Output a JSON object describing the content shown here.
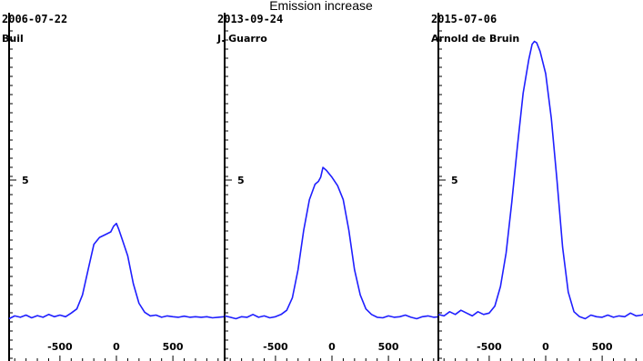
{
  "chart_data": {
    "type": "line",
    "title": "Emission increase",
    "xlim": [
      -950,
      950
    ],
    "ylim": [
      -0.5,
      10.2
    ],
    "y_tick_labels": [
      {
        "value": 5,
        "label": "5"
      }
    ],
    "x_tick_labels": [
      {
        "value": -500,
        "label": "-500"
      },
      {
        "value": 0,
        "label": "0"
      },
      {
        "value": 500,
        "label": "500"
      }
    ],
    "panels": [
      {
        "date": "2006-07-22",
        "observer": "Buil",
        "series_color": "#1f1fff",
        "points": [
          [
            -950,
            0.05
          ],
          [
            -900,
            0.15
          ],
          [
            -850,
            0.1
          ],
          [
            -800,
            0.18
          ],
          [
            -750,
            0.08
          ],
          [
            -700,
            0.16
          ],
          [
            -650,
            0.1
          ],
          [
            -600,
            0.2
          ],
          [
            -550,
            0.12
          ],
          [
            -500,
            0.18
          ],
          [
            -450,
            0.12
          ],
          [
            -400,
            0.25
          ],
          [
            -350,
            0.4
          ],
          [
            -300,
            0.9
          ],
          [
            -250,
            1.8
          ],
          [
            -200,
            2.7
          ],
          [
            -150,
            2.95
          ],
          [
            -100,
            3.05
          ],
          [
            -50,
            3.15
          ],
          [
            -25,
            3.35
          ],
          [
            0,
            3.45
          ],
          [
            20,
            3.25
          ],
          [
            50,
            2.9
          ],
          [
            100,
            2.3
          ],
          [
            150,
            1.3
          ],
          [
            200,
            0.6
          ],
          [
            250,
            0.28
          ],
          [
            300,
            0.15
          ],
          [
            350,
            0.18
          ],
          [
            400,
            0.1
          ],
          [
            450,
            0.15
          ],
          [
            500,
            0.12
          ],
          [
            550,
            0.1
          ],
          [
            600,
            0.14
          ],
          [
            650,
            0.1
          ],
          [
            700,
            0.12
          ],
          [
            750,
            0.1
          ],
          [
            800,
            0.12
          ],
          [
            850,
            0.08
          ],
          [
            900,
            0.1
          ],
          [
            950,
            0.12
          ]
        ]
      },
      {
        "date": "2013-09-24",
        "observer": "J. Guarro",
        "series_color": "#1f1fff",
        "points": [
          [
            -950,
            0.15
          ],
          [
            -900,
            0.1
          ],
          [
            -850,
            0.05
          ],
          [
            -800,
            0.12
          ],
          [
            -750,
            0.1
          ],
          [
            -700,
            0.2
          ],
          [
            -650,
            0.1
          ],
          [
            -600,
            0.15
          ],
          [
            -550,
            0.08
          ],
          [
            -500,
            0.12
          ],
          [
            -450,
            0.2
          ],
          [
            -400,
            0.35
          ],
          [
            -350,
            0.8
          ],
          [
            -300,
            1.8
          ],
          [
            -250,
            3.2
          ],
          [
            -200,
            4.3
          ],
          [
            -150,
            4.85
          ],
          [
            -120,
            4.95
          ],
          [
            -100,
            5.1
          ],
          [
            -80,
            5.45
          ],
          [
            -50,
            5.35
          ],
          [
            0,
            5.1
          ],
          [
            50,
            4.8
          ],
          [
            100,
            4.3
          ],
          [
            150,
            3.2
          ],
          [
            200,
            1.8
          ],
          [
            250,
            0.9
          ],
          [
            300,
            0.4
          ],
          [
            350,
            0.2
          ],
          [
            400,
            0.1
          ],
          [
            450,
            0.08
          ],
          [
            500,
            0.15
          ],
          [
            550,
            0.1
          ],
          [
            600,
            0.12
          ],
          [
            650,
            0.18
          ],
          [
            700,
            0.1
          ],
          [
            750,
            0.05
          ],
          [
            800,
            0.12
          ],
          [
            850,
            0.15
          ],
          [
            900,
            0.1
          ],
          [
            950,
            0.12
          ]
        ]
      },
      {
        "date": "2015-07-06",
        "observer": "Arnold de Bruin",
        "series_color": "#1f1fff",
        "points": [
          [
            -950,
            0.2
          ],
          [
            -900,
            0.15
          ],
          [
            -850,
            0.3
          ],
          [
            -800,
            0.2
          ],
          [
            -750,
            0.35
          ],
          [
            -700,
            0.25
          ],
          [
            -650,
            0.15
          ],
          [
            -600,
            0.3
          ],
          [
            -550,
            0.2
          ],
          [
            -500,
            0.25
          ],
          [
            -450,
            0.5
          ],
          [
            -400,
            1.2
          ],
          [
            -350,
            2.4
          ],
          [
            -300,
            4.2
          ],
          [
            -250,
            6.2
          ],
          [
            -200,
            8.1
          ],
          [
            -150,
            9.3
          ],
          [
            -120,
            9.85
          ],
          [
            -100,
            9.95
          ],
          [
            -80,
            9.9
          ],
          [
            -50,
            9.6
          ],
          [
            0,
            8.8
          ],
          [
            50,
            7.2
          ],
          [
            100,
            5.0
          ],
          [
            150,
            2.6
          ],
          [
            200,
            1.0
          ],
          [
            250,
            0.3
          ],
          [
            300,
            0.12
          ],
          [
            350,
            0.05
          ],
          [
            400,
            0.18
          ],
          [
            450,
            0.12
          ],
          [
            500,
            0.1
          ],
          [
            550,
            0.18
          ],
          [
            600,
            0.1
          ],
          [
            650,
            0.15
          ],
          [
            700,
            0.12
          ],
          [
            750,
            0.25
          ],
          [
            800,
            0.15
          ],
          [
            850,
            0.18
          ],
          [
            900,
            0.3
          ],
          [
            950,
            0.22
          ]
        ]
      }
    ]
  }
}
